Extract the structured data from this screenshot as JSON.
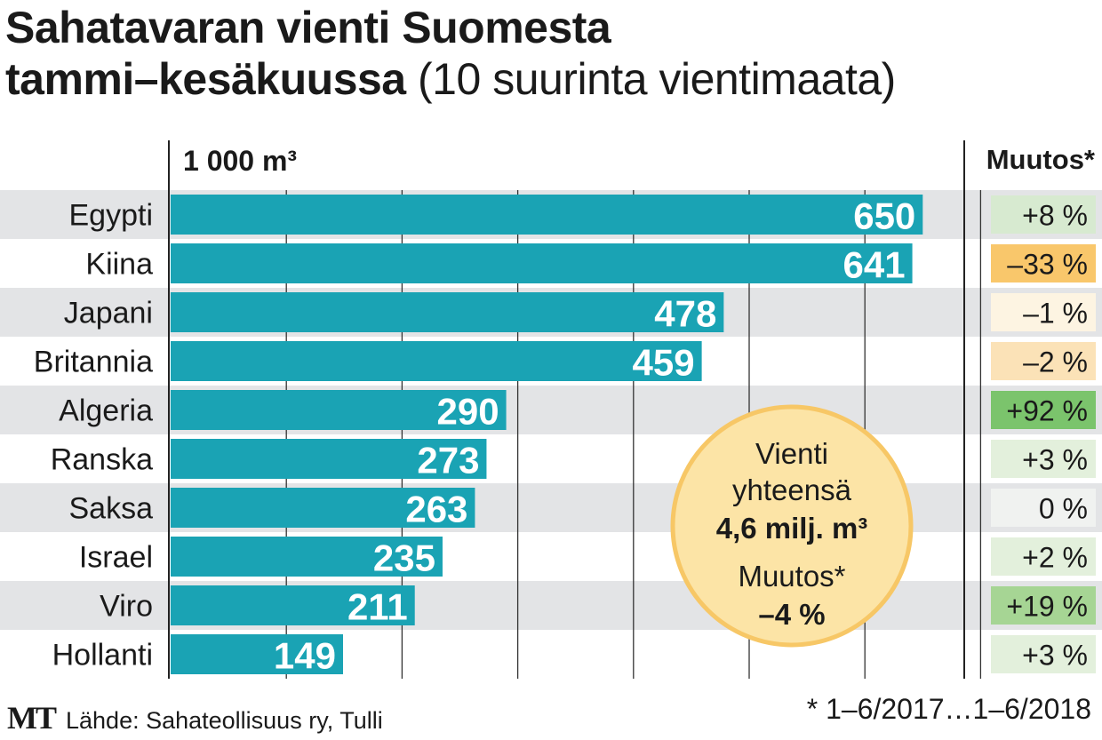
{
  "title": {
    "main_line1": "Sahatavaran vienti Suomesta",
    "main_line2": "tammi–kesäkuussa",
    "subtitle": "(10 suurinta vientimaata)"
  },
  "footer": {
    "logo": "MT",
    "source": "Lähde: Sahateollisuus ry, Tulli",
    "note": "* 1–6/2017…1–6/2018"
  },
  "summary": {
    "line1": "Vienti",
    "line2": "yhteensä",
    "total": "4,6 milj. m³",
    "change_label": "Muutos*",
    "change_value": "–4 %"
  },
  "colors": {
    "bar": "#1aa3b4",
    "row_band": "#e3e4e6",
    "circle_fill": "#fce4a6",
    "circle_stroke": "#f7c766"
  },
  "chart_data": {
    "type": "bar",
    "orientation": "horizontal",
    "ylabel": "1 000 m³",
    "change_header": "Muutos*",
    "categories": [
      "Egypti",
      "Kiina",
      "Japani",
      "Britannia",
      "Algeria",
      "Ranska",
      "Saksa",
      "Israel",
      "Viro",
      "Hollanti"
    ],
    "values": [
      650,
      641,
      478,
      459,
      290,
      273,
      263,
      235,
      211,
      149
    ],
    "change_labels": [
      "+8 %",
      "–33 %",
      "–1 %",
      "–2 %",
      "+92 %",
      "+3 %",
      "0 %",
      "+2 %",
      "+19 %",
      "+3 %"
    ],
    "change_colors": [
      "#d7ead0",
      "#f9c76b",
      "#fdf4e2",
      "#fbe2b7",
      "#7bc46c",
      "#e3f0dc",
      "#f0f2f0",
      "#e3f0dc",
      "#a6d594",
      "#e3f0dc"
    ],
    "xlim": [
      0,
      700
    ],
    "grid": true
  }
}
